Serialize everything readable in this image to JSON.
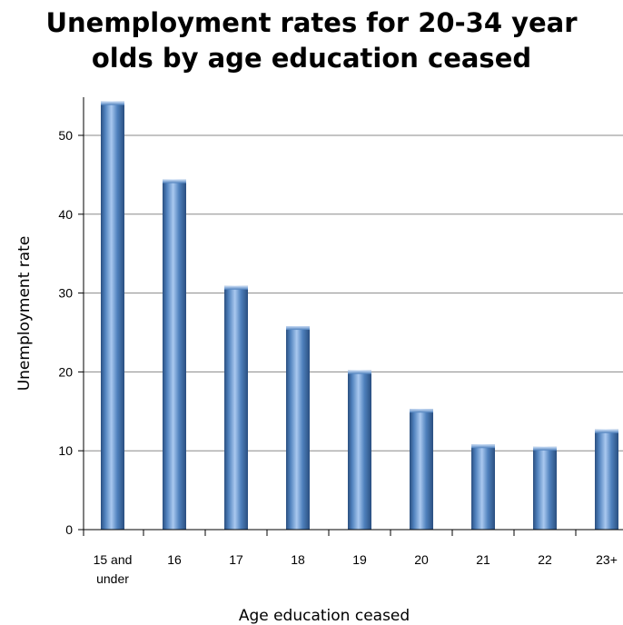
{
  "chart_data": {
    "type": "bar",
    "title_lines": [
      "Unemployment rates for 20-34 year",
      "olds by age education ceased"
    ],
    "xlabel": "Age education ceased",
    "ylabel": "Unemployment rate",
    "categories": [
      [
        "15 and",
        "under"
      ],
      [
        "16"
      ],
      [
        "17"
      ],
      [
        "18"
      ],
      [
        "19"
      ],
      [
        "20"
      ],
      [
        "21"
      ],
      [
        "22"
      ],
      [
        "23+"
      ]
    ],
    "values": [
      54.3,
      44.4,
      30.9,
      25.8,
      20.2,
      15.3,
      10.8,
      10.5,
      12.7
    ],
    "ylim": [
      0,
      55
    ],
    "yticks": [
      0,
      10,
      20,
      30,
      40,
      50
    ],
    "grid": true,
    "legend": "none",
    "bar_color": "#4f81bd",
    "bar_color_light": "#9fc0ea",
    "bar_color_dark": "#2a4f80"
  }
}
